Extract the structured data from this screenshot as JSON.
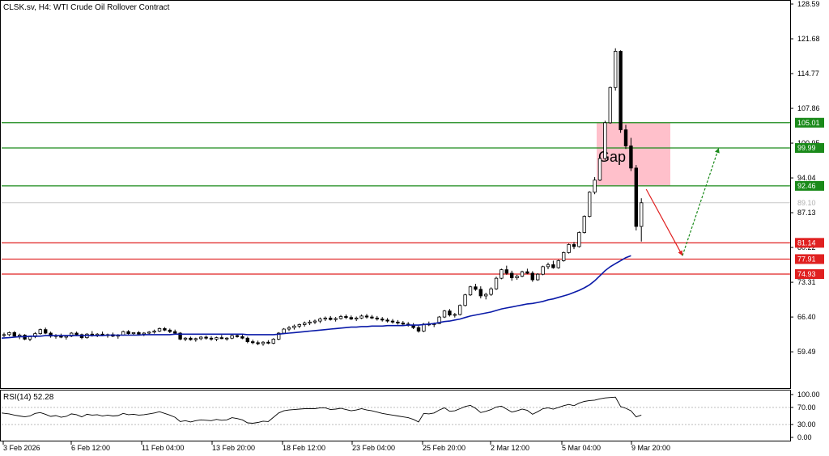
{
  "header": {
    "title": "CLSK.sv, H4:  WTI Crude Oil Rollover Contract"
  },
  "colors": {
    "bull_candle": "#ffffff",
    "bear_candle": "#000000",
    "ma_line": "#0a1aa8",
    "support": "#e02020",
    "resistance": "#1a8a1a",
    "gap_box": "#ffc0cb",
    "arrow_down": "#e02020",
    "arrow_up": "#1a8a1a",
    "rsi_line": "#000000"
  },
  "chart_data": [
    {
      "type": "candlestick",
      "ylim": [
        52.6,
        128.59
      ],
      "price_ticks": [
        "128.59",
        "121.68",
        "114.77",
        "107.86",
        "100.95",
        "94.04",
        "87.13",
        "80.22",
        "73.31",
        "66.40",
        "59.49"
      ],
      "x_ticks": [
        "3 Feb 2026",
        "6 Feb 12:00",
        "11 Feb 04:00",
        "13 Feb 20:00",
        "18 Feb 12:00",
        "23 Feb 04:00",
        "25 Feb 20:00",
        "2 Mar 12:00",
        "5 Mar 04:00",
        "9 Mar 20:00"
      ],
      "current_price": "89.10",
      "levels": [
        {
          "label": "105.01",
          "value": 105.01,
          "kind": "resistance"
        },
        {
          "label": "99.99",
          "value": 99.99,
          "kind": "resistance"
        },
        {
          "label": "92.46",
          "value": 92.46,
          "kind": "resistance"
        },
        {
          "label": "81.14",
          "value": 81.14,
          "kind": "support"
        },
        {
          "label": "77.91",
          "value": 77.91,
          "kind": "support"
        },
        {
          "label": "74.93",
          "value": 74.93,
          "kind": "support"
        }
      ],
      "annotation": {
        "text": "Gap",
        "from": 105.01,
        "to": 92.46
      },
      "projection": [
        {
          "price": 91.8,
          "bars_ahead": 0
        },
        {
          "price": 78.6,
          "bars_ahead": 8
        },
        {
          "price": 100.0,
          "bars_ahead": 16
        }
      ],
      "series": [
        {
          "kind": "ohlc",
          "values": [
            [
              62.8,
              63.3,
              62.4,
              62.9
            ],
            [
              62.9,
              63.5,
              62.6,
              63.3
            ],
            [
              63.3,
              63.6,
              62.5,
              62.6
            ],
            [
              62.6,
              63.1,
              62.0,
              62.8
            ],
            [
              62.8,
              63.0,
              61.8,
              62.0
            ],
            [
              62.0,
              62.7,
              61.6,
              62.5
            ],
            [
              62.5,
              63.4,
              62.2,
              63.1
            ],
            [
              63.1,
              64.1,
              62.9,
              63.9
            ],
            [
              63.9,
              64.3,
              63.0,
              63.2
            ],
            [
              63.2,
              63.5,
              62.3,
              62.6
            ],
            [
              62.6,
              63.0,
              62.1,
              62.7
            ],
            [
              62.7,
              63.1,
              62.2,
              62.4
            ],
            [
              62.4,
              62.8,
              61.9,
              62.6
            ],
            [
              62.6,
              63.4,
              62.4,
              63.2
            ],
            [
              63.2,
              63.5,
              62.6,
              62.9
            ],
            [
              62.9,
              63.1,
              62.0,
              62.3
            ],
            [
              62.3,
              63.2,
              62.1,
              63.0
            ],
            [
              63.0,
              63.6,
              62.5,
              62.8
            ],
            [
              62.8,
              63.2,
              62.4,
              63.0
            ],
            [
              63.0,
              63.5,
              62.6,
              62.7
            ],
            [
              62.7,
              63.1,
              62.3,
              62.9
            ],
            [
              62.9,
              63.3,
              62.4,
              62.6
            ],
            [
              62.6,
              63.0,
              62.1,
              62.8
            ],
            [
              62.8,
              63.7,
              62.7,
              63.5
            ],
            [
              63.5,
              63.8,
              62.9,
              63.1
            ],
            [
              63.1,
              63.4,
              62.7,
              63.3
            ],
            [
              63.3,
              63.6,
              62.9,
              63.0
            ],
            [
              63.0,
              63.4,
              62.6,
              63.2
            ],
            [
              63.2,
              63.6,
              62.8,
              63.4
            ],
            [
              63.4,
              63.9,
              63.1,
              63.6
            ],
            [
              63.6,
              64.3,
              63.4,
              64.1
            ],
            [
              64.1,
              64.4,
              63.6,
              63.8
            ],
            [
              63.8,
              64.1,
              63.2,
              63.5
            ],
            [
              63.5,
              63.9,
              62.9,
              63.2
            ],
            [
              63.2,
              63.4,
              61.8,
              62.0
            ],
            [
              62.0,
              62.4,
              61.6,
              62.2
            ],
            [
              62.2,
              62.5,
              61.7,
              61.9
            ],
            [
              61.9,
              62.3,
              61.5,
              62.1
            ],
            [
              62.1,
              62.6,
              61.8,
              62.4
            ],
            [
              62.4,
              62.7,
              61.9,
              62.2
            ],
            [
              62.2,
              62.6,
              61.7,
              62.0
            ],
            [
              62.0,
              62.5,
              61.6,
              62.3
            ],
            [
              62.3,
              62.8,
              62.0,
              62.1
            ],
            [
              62.1,
              62.4,
              61.7,
              62.2
            ],
            [
              62.2,
              62.9,
              62.0,
              62.7
            ],
            [
              62.7,
              63.1,
              62.3,
              62.5
            ],
            [
              62.5,
              62.9,
              62.0,
              62.2
            ],
            [
              62.2,
              62.5,
              61.2,
              61.5
            ],
            [
              61.5,
              61.9,
              61.0,
              61.3
            ],
            [
              61.3,
              61.7,
              60.8,
              61.1
            ],
            [
              61.1,
              61.6,
              60.7,
              61.4
            ],
            [
              61.4,
              61.8,
              61.0,
              61.2
            ],
            [
              61.2,
              62.2,
              61.0,
              62.0
            ],
            [
              62.0,
              63.4,
              61.8,
              63.2
            ],
            [
              63.2,
              64.2,
              63.0,
              64.0
            ],
            [
              64.0,
              64.6,
              63.6,
              64.3
            ],
            [
              64.3,
              64.9,
              63.9,
              64.6
            ],
            [
              64.6,
              65.1,
              64.2,
              64.9
            ],
            [
              64.9,
              65.5,
              64.5,
              65.2
            ],
            [
              65.2,
              65.8,
              64.8,
              65.4
            ],
            [
              65.4,
              65.9,
              65.0,
              65.6
            ],
            [
              65.6,
              66.3,
              65.2,
              66.0
            ],
            [
              66.0,
              66.5,
              65.6,
              66.2
            ],
            [
              66.2,
              66.6,
              65.7,
              65.9
            ],
            [
              65.9,
              66.4,
              65.5,
              66.1
            ],
            [
              66.1,
              66.8,
              65.9,
              66.5
            ],
            [
              66.5,
              66.9,
              66.0,
              66.3
            ],
            [
              66.3,
              66.7,
              65.8,
              66.0
            ],
            [
              66.0,
              66.5,
              65.6,
              66.2
            ],
            [
              66.2,
              66.9,
              66.0,
              66.6
            ],
            [
              66.6,
              67.0,
              66.1,
              66.4
            ],
            [
              66.4,
              66.8,
              66.0,
              66.2
            ],
            [
              66.2,
              66.6,
              65.7,
              66.0
            ],
            [
              66.0,
              66.4,
              65.5,
              65.8
            ],
            [
              65.8,
              66.2,
              65.3,
              65.6
            ],
            [
              65.6,
              66.0,
              65.1,
              65.4
            ],
            [
              65.4,
              65.8,
              64.9,
              65.2
            ],
            [
              65.2,
              65.6,
              64.7,
              65.0
            ],
            [
              65.0,
              65.4,
              64.5,
              64.8
            ],
            [
              64.8,
              65.2,
              64.0,
              64.3
            ],
            [
              64.3,
              64.7,
              63.3,
              63.6
            ],
            [
              63.6,
              65.2,
              63.4,
              65.0
            ],
            [
              65.0,
              65.5,
              64.6,
              64.9
            ],
            [
              64.9,
              65.3,
              64.4,
              65.1
            ],
            [
              65.1,
              66.6,
              65.0,
              66.4
            ],
            [
              66.4,
              67.8,
              66.2,
              67.6
            ],
            [
              67.6,
              68.0,
              66.5,
              66.8
            ],
            [
              66.8,
              67.2,
              66.3,
              66.9
            ],
            [
              66.9,
              68.9,
              66.7,
              68.7
            ],
            [
              68.7,
              71.0,
              68.5,
              70.8
            ],
            [
              70.8,
              72.6,
              70.6,
              72.4
            ],
            [
              72.4,
              73.0,
              71.6,
              71.9
            ],
            [
              71.9,
              72.5,
              70.1,
              70.6
            ],
            [
              70.6,
              71.2,
              69.9,
              70.9
            ],
            [
              70.9,
              72.3,
              70.6,
              72.0
            ],
            [
              72.0,
              74.4,
              71.8,
              74.1
            ],
            [
              74.1,
              76.0,
              73.9,
              75.8
            ],
            [
              75.8,
              76.6,
              74.8,
              75.1
            ],
            [
              75.1,
              75.6,
              73.6,
              74.2
            ],
            [
              74.2,
              74.8,
              73.8,
              74.5
            ],
            [
              74.5,
              75.6,
              74.3,
              75.4
            ],
            [
              75.4,
              76.0,
              74.9,
              75.1
            ],
            [
              75.1,
              75.5,
              73.4,
              73.8
            ],
            [
              73.8,
              75.1,
              73.6,
              74.9
            ],
            [
              74.9,
              76.6,
              74.7,
              76.4
            ],
            [
              76.4,
              77.2,
              75.9,
              76.8
            ],
            [
              76.8,
              77.6,
              76.0,
              76.2
            ],
            [
              76.2,
              77.8,
              76.0,
              77.6
            ],
            [
              77.6,
              79.4,
              77.4,
              79.2
            ],
            [
              79.2,
              81.0,
              79.0,
              80.8
            ],
            [
              80.8,
              81.3,
              79.9,
              80.4
            ],
            [
              80.4,
              83.4,
              80.2,
              83.2
            ],
            [
              83.2,
              86.6,
              83.0,
              86.4
            ],
            [
              86.4,
              91.4,
              86.2,
              91.2
            ],
            [
              91.2,
              94.2,
              90.8,
              93.6
            ],
            [
              93.6,
              98.2,
              93.4,
              97.9
            ],
            [
              97.9,
              105.4,
              97.6,
              105.0
            ],
            [
              105.0,
              112.2,
              104.8,
              112.0
            ],
            [
              112.0,
              119.8,
              111.4,
              119.2
            ],
            [
              119.2,
              119.4,
              103.0,
              103.6
            ],
            [
              103.6,
              104.6,
              99.8,
              100.4
            ],
            [
              100.4,
              102.0,
              95.4,
              96.0
            ],
            [
              96.0,
              96.6,
              83.6,
              84.4
            ],
            [
              84.4,
              90.0,
              81.4,
              89.1
            ]
          ]
        },
        {
          "kind": "ma",
          "values": [
            62.2,
            62.3,
            62.4,
            62.5,
            62.5,
            62.6,
            62.6,
            62.6,
            62.7,
            62.7,
            62.7,
            62.7,
            62.7,
            62.7,
            62.7,
            62.7,
            62.7,
            62.7,
            62.7,
            62.7,
            62.8,
            62.8,
            62.8,
            62.8,
            62.8,
            62.8,
            62.8,
            62.9,
            62.9,
            62.9,
            62.9,
            62.9,
            62.9,
            63.0,
            63.0,
            63.0,
            63.0,
            63.0,
            63.0,
            63.0,
            63.0,
            63.0,
            63.0,
            63.0,
            63.0,
            63.0,
            63.0,
            62.9,
            62.9,
            62.9,
            62.9,
            62.9,
            62.9,
            63.0,
            63.1,
            63.2,
            63.3,
            63.4,
            63.5,
            63.6,
            63.7,
            63.8,
            63.9,
            64.0,
            64.1,
            64.2,
            64.3,
            64.4,
            64.4,
            64.5,
            64.5,
            64.6,
            64.6,
            64.6,
            64.7,
            64.7,
            64.7,
            64.7,
            64.8,
            64.8,
            64.8,
            64.9,
            65.0,
            65.1,
            65.3,
            65.5,
            65.6,
            65.8,
            66.0,
            66.3,
            66.6,
            66.8,
            67.0,
            67.2,
            67.4,
            67.7,
            68.0,
            68.2,
            68.4,
            68.6,
            68.8,
            69.0,
            69.1,
            69.3,
            69.5,
            69.8,
            70.0,
            70.3,
            70.6,
            70.9,
            71.3,
            71.7,
            72.2,
            72.8,
            73.6,
            74.6,
            75.6,
            76.4,
            77.0,
            77.6,
            78.2,
            78.6
          ]
        }
      ]
    },
    {
      "type": "line",
      "title": "RSI(14) 52.28",
      "ylim": [
        0,
        100
      ],
      "ticks": [
        "100.00",
        "70.00",
        "30.00",
        "0.00"
      ],
      "levels": [
        70,
        30
      ],
      "values": [
        57,
        55,
        52,
        50,
        48,
        50,
        56,
        58,
        54,
        49,
        51,
        47,
        49,
        55,
        53,
        48,
        54,
        52,
        53,
        50,
        52,
        50,
        51,
        56,
        53,
        54,
        52,
        53,
        55,
        57,
        60,
        56,
        52,
        47,
        37,
        39,
        36,
        39,
        41,
        40,
        39,
        42,
        40,
        41,
        46,
        44,
        41,
        34,
        33,
        35,
        38,
        37,
        47,
        57,
        62,
        64,
        65,
        66,
        67,
        67,
        67,
        69,
        69,
        65,
        66,
        68,
        65,
        62,
        64,
        67,
        64,
        62,
        59,
        56,
        54,
        52,
        50,
        48,
        46,
        42,
        36,
        56,
        55,
        57,
        64,
        69,
        61,
        62,
        67,
        72,
        75,
        68,
        58,
        61,
        65,
        71,
        73,
        66,
        59,
        62,
        66,
        63,
        54,
        60,
        67,
        69,
        66,
        70,
        74,
        77,
        74,
        80,
        84,
        86,
        87,
        90,
        92,
        93,
        94,
        72,
        68,
        62,
        48,
        52
      ]
    }
  ]
}
